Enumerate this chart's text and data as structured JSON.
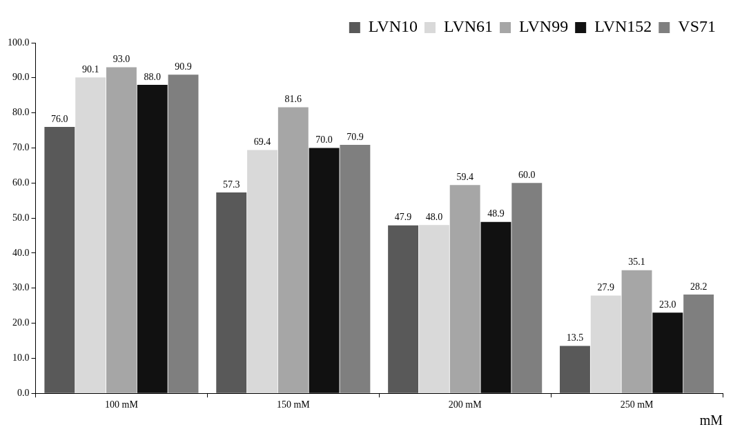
{
  "chart_data": {
    "type": "bar",
    "xlabel": "mM",
    "categories": [
      "100 mM",
      "150 mM",
      "200 mM",
      "250 mM"
    ],
    "series": [
      {
        "name": "LVN10",
        "color": "#595959",
        "values": [
          76.0,
          57.3,
          47.9,
          13.5
        ],
        "value_labels": [
          "76.0",
          "57.3",
          "47.9",
          "13.5"
        ]
      },
      {
        "name": "LVN61",
        "color": "#d9d9d9",
        "values": [
          90.1,
          69.4,
          48.0,
          27.9
        ],
        "value_labels": [
          "90.1",
          "69.4",
          "48.0",
          "27.9"
        ]
      },
      {
        "name": "LVN99",
        "color": "#a6a6a6",
        "values": [
          93.0,
          81.6,
          59.4,
          35.1
        ],
        "value_labels": [
          "93.0",
          "81.6",
          "59.4",
          "35.1"
        ]
      },
      {
        "name": "LVN152",
        "color": "#111111",
        "values": [
          88.0,
          70.0,
          48.9,
          23.0
        ],
        "value_labels": [
          "88.0",
          "70.0",
          "48.9",
          "23.0"
        ]
      },
      {
        "name": "VS71",
        "color": "#7f7f7f",
        "values": [
          90.9,
          70.9,
          60.0,
          28.2
        ],
        "value_labels": [
          "90.9",
          "70.9",
          "60.0",
          "28.2"
        ]
      }
    ],
    "ylim": [
      0,
      100
    ],
    "yticks": [
      {
        "value": 0,
        "label": "0.0"
      },
      {
        "value": 10,
        "label": "10.0"
      },
      {
        "value": 20,
        "label": "20.0"
      },
      {
        "value": 30,
        "label": "30.0"
      },
      {
        "value": 40,
        "label": "40.0"
      },
      {
        "value": 50,
        "label": "50.0"
      },
      {
        "value": 60,
        "label": "60.0"
      },
      {
        "value": 70,
        "label": "70.0"
      },
      {
        "value": 80,
        "label": "80.0"
      },
      {
        "value": 90,
        "label": "90.0"
      },
      {
        "value": 100,
        "label": "100.0"
      }
    ],
    "grid": false,
    "legend": "top right"
  }
}
